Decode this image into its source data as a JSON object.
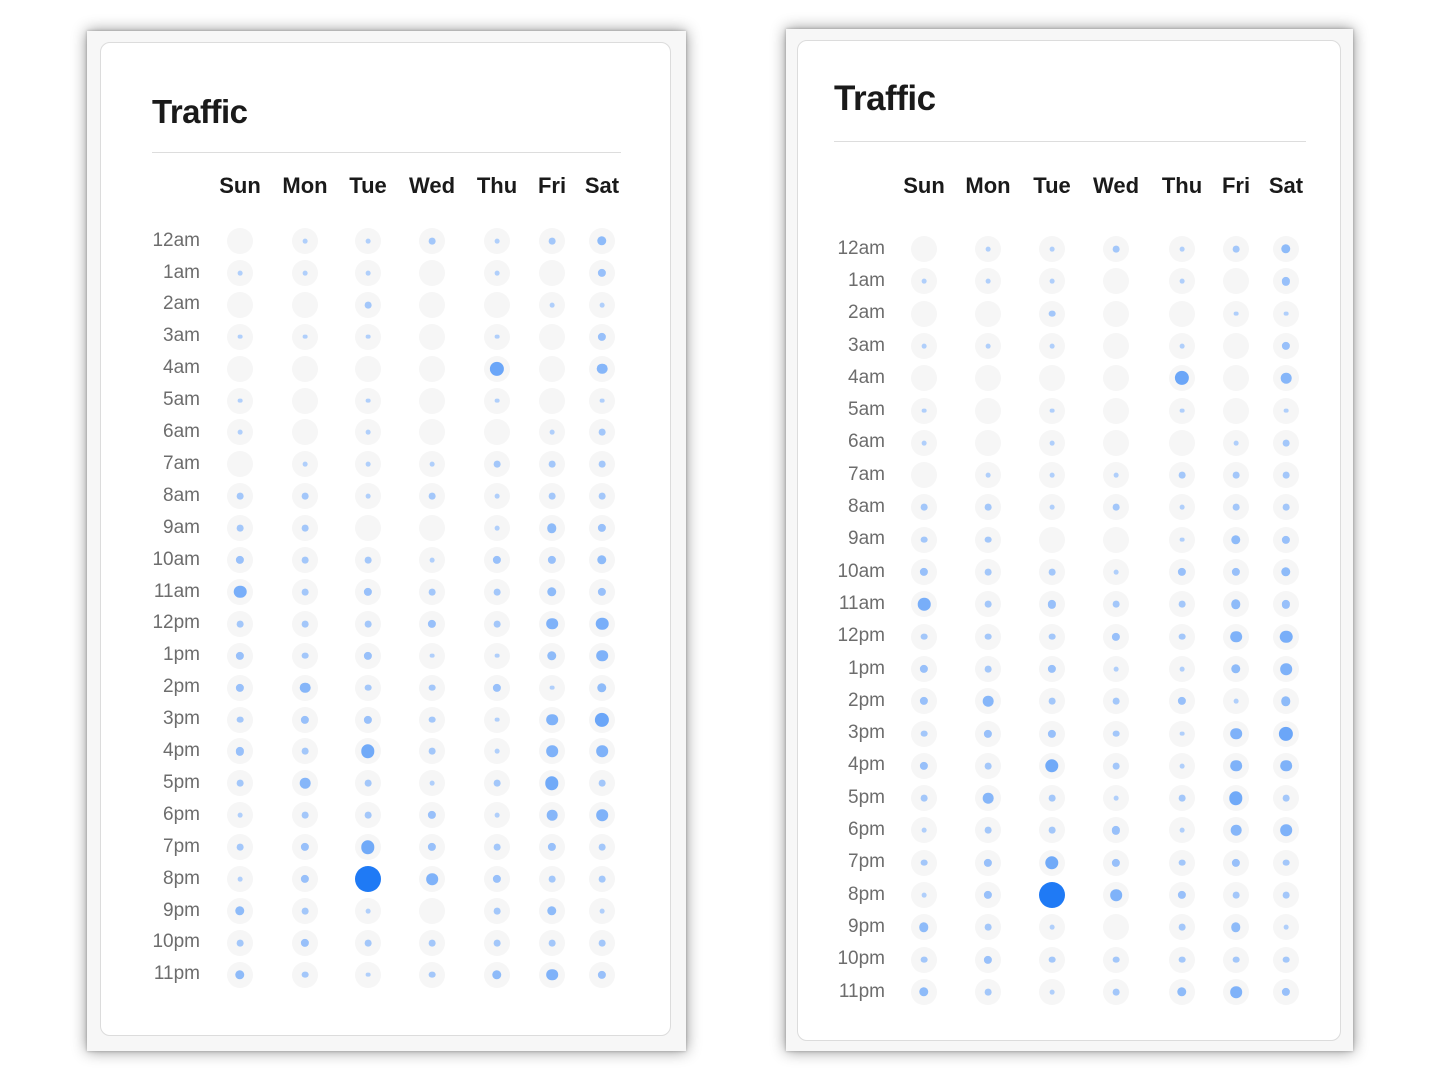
{
  "heatmaps": [
    {
      "title": "Traffic",
      "days": [
        "Sun",
        "Mon",
        "Tue",
        "Wed",
        "Thu",
        "Fri",
        "Sat"
      ],
      "hours": [
        "12am",
        "1am",
        "2am",
        "3am",
        "4am",
        "5am",
        "6am",
        "7am",
        "8am",
        "9am",
        "10am",
        "11am",
        "12pm",
        "1pm",
        "2pm",
        "3pm",
        "4pm",
        "5pm",
        "6pm",
        "7pm",
        "8pm",
        "9pm",
        "10pm",
        "11pm"
      ]
    },
    {
      "title": "Traffic",
      "days": [
        "Sun",
        "Mon",
        "Tue",
        "Wed",
        "Thu",
        "Fri",
        "Sat"
      ],
      "hours": [
        "12am",
        "1am",
        "2am",
        "3am",
        "4am",
        "5am",
        "6am",
        "7am",
        "8am",
        "9am",
        "10am",
        "11am",
        "12pm",
        "1pm",
        "2pm",
        "3pm",
        "4pm",
        "5pm",
        "6pm",
        "7pm",
        "8pm",
        "9pm",
        "10pm",
        "11pm"
      ]
    }
  ],
  "chart_data": {
    "type": "heatmap",
    "title": "Traffic",
    "x_categories": [
      "Sun",
      "Mon",
      "Tue",
      "Wed",
      "Thu",
      "Fri",
      "Sat"
    ],
    "y_categories": [
      "12am",
      "1am",
      "2am",
      "3am",
      "4am",
      "5am",
      "6am",
      "7am",
      "8am",
      "9am",
      "10am",
      "11am",
      "12pm",
      "1pm",
      "2pm",
      "3pm",
      "4pm",
      "5pm",
      "6pm",
      "7pm",
      "8pm",
      "9pm",
      "10pm",
      "11pm"
    ],
    "values": [
      [
        0,
        1,
        1,
        2,
        1,
        2,
        4
      ],
      [
        1,
        1,
        1,
        0,
        1,
        0,
        3
      ],
      [
        0,
        0,
        2,
        0,
        0,
        1,
        1
      ],
      [
        1,
        1,
        1,
        0,
        1,
        0,
        3
      ],
      [
        0,
        0,
        0,
        0,
        9,
        0,
        5
      ],
      [
        1,
        0,
        1,
        0,
        1,
        0,
        1
      ],
      [
        1,
        0,
        1,
        0,
        0,
        1,
        2
      ],
      [
        0,
        1,
        1,
        1,
        2,
        2,
        2
      ],
      [
        2,
        2,
        1,
        2,
        1,
        2,
        2
      ],
      [
        2,
        2,
        0,
        0,
        1,
        4,
        3
      ],
      [
        3,
        2,
        2,
        1,
        3,
        3,
        4
      ],
      [
        7,
        2,
        3,
        2,
        2,
        4,
        3
      ],
      [
        2,
        2,
        2,
        3,
        2,
        6,
        7
      ],
      [
        3,
        2,
        3,
        1,
        1,
        4,
        6
      ],
      [
        3,
        5,
        2,
        2,
        3,
        1,
        4
      ],
      [
        2,
        3,
        3,
        2,
        1,
        6,
        9
      ],
      [
        3,
        2,
        8,
        2,
        1,
        6,
        6
      ],
      [
        2,
        5,
        2,
        1,
        2,
        8,
        2
      ],
      [
        1,
        2,
        2,
        3,
        1,
        5,
        6
      ],
      [
        2,
        3,
        8,
        3,
        2,
        3,
        2
      ],
      [
        1,
        3,
        30,
        6,
        3,
        2,
        2
      ],
      [
        4,
        2,
        1,
        0,
        2,
        4,
        1
      ],
      [
        2,
        3,
        2,
        2,
        2,
        2,
        2
      ],
      [
        4,
        2,
        1,
        2,
        4,
        6,
        3
      ]
    ],
    "value_scale": "relative, max = 30",
    "color": "#1f7af5",
    "legend": "none"
  }
}
